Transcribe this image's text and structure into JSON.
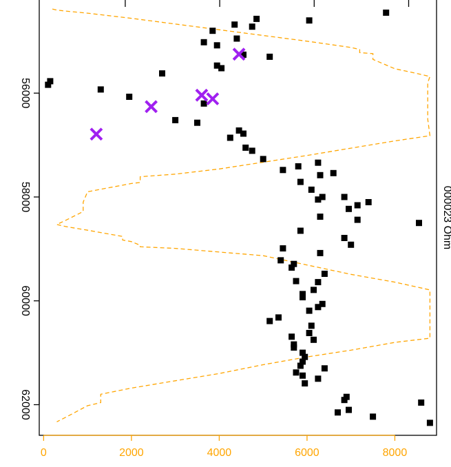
{
  "chart_data": {
    "type": "scatter",
    "bottom_axis": {
      "range": [
        -100,
        8950
      ],
      "ticks": [
        0,
        2000,
        4000,
        6000,
        8000
      ],
      "tick_labels": [
        "0",
        "2000",
        "4000",
        "6000",
        "8000"
      ],
      "color": "#FFA500"
    },
    "left_axis": {
      "range": [
        54180,
        62590
      ],
      "reversed": true,
      "ticks": [
        56000,
        58000,
        60000,
        62000
      ],
      "tick_labels": [
        "56000",
        "58000",
        "60000",
        "62000"
      ]
    },
    "top_axis": {
      "ticks": [
        54000,
        56000,
        58000,
        60000,
        62000
      ]
    },
    "right_axis_label": "000023 Ohm",
    "colors": {
      "points": "#000000",
      "crosses": "#A020F0",
      "line": "#FFA500"
    },
    "points": [
      [
        7800,
        54450
      ],
      [
        6050,
        54600
      ],
      [
        4850,
        54570
      ],
      [
        4750,
        54720
      ],
      [
        4350,
        54680
      ],
      [
        3850,
        54800
      ],
      [
        4400,
        54950
      ],
      [
        3650,
        55020
      ],
      [
        3950,
        55080
      ],
      [
        4550,
        55260
      ],
      [
        5150,
        55300
      ],
      [
        3950,
        55470
      ],
      [
        4050,
        55520
      ],
      [
        2700,
        55620
      ],
      [
        150,
        55770
      ],
      [
        100,
        55840
      ],
      [
        1300,
        55930
      ],
      [
        1950,
        56070
      ],
      [
        3650,
        56200
      ],
      [
        3000,
        56520
      ],
      [
        3500,
        56570
      ],
      [
        4450,
        56720
      ],
      [
        4550,
        56780
      ],
      [
        4250,
        56860
      ],
      [
        4600,
        57050
      ],
      [
        4750,
        57110
      ],
      [
        5000,
        57270
      ],
      [
        6250,
        57340
      ],
      [
        5800,
        57410
      ],
      [
        5450,
        57480
      ],
      [
        6600,
        57540
      ],
      [
        6300,
        57580
      ],
      [
        5850,
        57710
      ],
      [
        6100,
        57860
      ],
      [
        6350,
        58000
      ],
      [
        6850,
        58000
      ],
      [
        6250,
        58050
      ],
      [
        7400,
        58100
      ],
      [
        7150,
        58160
      ],
      [
        6950,
        58230
      ],
      [
        6300,
        58380
      ],
      [
        7150,
        58440
      ],
      [
        8550,
        58500
      ],
      [
        5850,
        58650
      ],
      [
        6850,
        58790
      ],
      [
        7000,
        58920
      ],
      [
        5450,
        58990
      ],
      [
        6300,
        59080
      ],
      [
        5400,
        59220
      ],
      [
        5700,
        59290
      ],
      [
        5650,
        59360
      ],
      [
        6400,
        59480
      ],
      [
        5750,
        59620
      ],
      [
        6250,
        59640
      ],
      [
        6150,
        59790
      ],
      [
        5900,
        59870
      ],
      [
        5900,
        59930
      ],
      [
        6350,
        60060
      ],
      [
        6250,
        60120
      ],
      [
        6050,
        60190
      ],
      [
        5350,
        60320
      ],
      [
        5150,
        60390
      ],
      [
        6100,
        60480
      ],
      [
        6050,
        60620
      ],
      [
        5650,
        60690
      ],
      [
        6150,
        60750
      ],
      [
        5700,
        60840
      ],
      [
        5700,
        60900
      ],
      [
        5900,
        61000
      ],
      [
        5950,
        61080
      ],
      [
        5900,
        61170
      ],
      [
        5850,
        61250
      ],
      [
        6400,
        61300
      ],
      [
        5750,
        61380
      ],
      [
        5900,
        61440
      ],
      [
        6250,
        61500
      ],
      [
        5950,
        61590
      ],
      [
        6900,
        61850
      ],
      [
        6850,
        61910
      ],
      [
        8600,
        61960
      ],
      [
        6950,
        62100
      ],
      [
        6700,
        62150
      ],
      [
        7500,
        62230
      ],
      [
        8800,
        62350
      ]
    ],
    "crosses": [
      [
        4450,
        55250
      ],
      [
        3600,
        56040
      ],
      [
        3850,
        56110
      ],
      [
        2450,
        56260
      ],
      [
        1200,
        56790
      ]
    ],
    "line": [
      [
        200,
        54380
      ],
      [
        300,
        54400
      ],
      [
        500,
        54420
      ],
      [
        1000,
        54460
      ],
      [
        2000,
        54560
      ],
      [
        3000,
        54670
      ],
      [
        4000,
        54780
      ],
      [
        5000,
        54890
      ],
      [
        6000,
        55000
      ],
      [
        7000,
        55120
      ],
      [
        7200,
        55160
      ],
      [
        7200,
        55220
      ],
      [
        7500,
        55240
      ],
      [
        7500,
        55350
      ],
      [
        8000,
        55530
      ],
      [
        8500,
        55620
      ],
      [
        8800,
        55680
      ],
      [
        8750,
        55800
      ],
      [
        8750,
        56000
      ],
      [
        8750,
        56200
      ],
      [
        8750,
        56500
      ],
      [
        8800,
        56820
      ],
      [
        8000,
        56920
      ],
      [
        7000,
        57060
      ],
      [
        6000,
        57200
      ],
      [
        5000,
        57330
      ],
      [
        4000,
        57460
      ],
      [
        3000,
        57560
      ],
      [
        2200,
        57610
      ],
      [
        2200,
        57720
      ],
      [
        2000,
        57740
      ],
      [
        1500,
        57820
      ],
      [
        1000,
        57900
      ],
      [
        900,
        58100
      ],
      [
        900,
        58280
      ],
      [
        500,
        58450
      ],
      [
        300,
        58530
      ],
      [
        500,
        58570
      ],
      [
        1000,
        58640
      ],
      [
        1800,
        58760
      ],
      [
        1800,
        58830
      ],
      [
        2000,
        58860
      ],
      [
        2200,
        58930
      ],
      [
        2200,
        58960
      ],
      [
        3000,
        58990
      ],
      [
        4000,
        59060
      ],
      [
        5000,
        59130
      ],
      [
        6000,
        59310
      ],
      [
        7000,
        59490
      ],
      [
        8000,
        59640
      ],
      [
        8800,
        59790
      ],
      [
        8800,
        60000
      ],
      [
        8800,
        60200
      ],
      [
        8800,
        60450
      ],
      [
        8800,
        60720
      ],
      [
        8000,
        60800
      ],
      [
        7000,
        60950
      ],
      [
        6000,
        61080
      ],
      [
        5000,
        61230
      ],
      [
        4000,
        61400
      ],
      [
        3000,
        61540
      ],
      [
        2000,
        61680
      ],
      [
        1300,
        61800
      ],
      [
        1300,
        61960
      ],
      [
        1000,
        62020
      ],
      [
        600,
        62200
      ],
      [
        300,
        62330
      ]
    ]
  }
}
